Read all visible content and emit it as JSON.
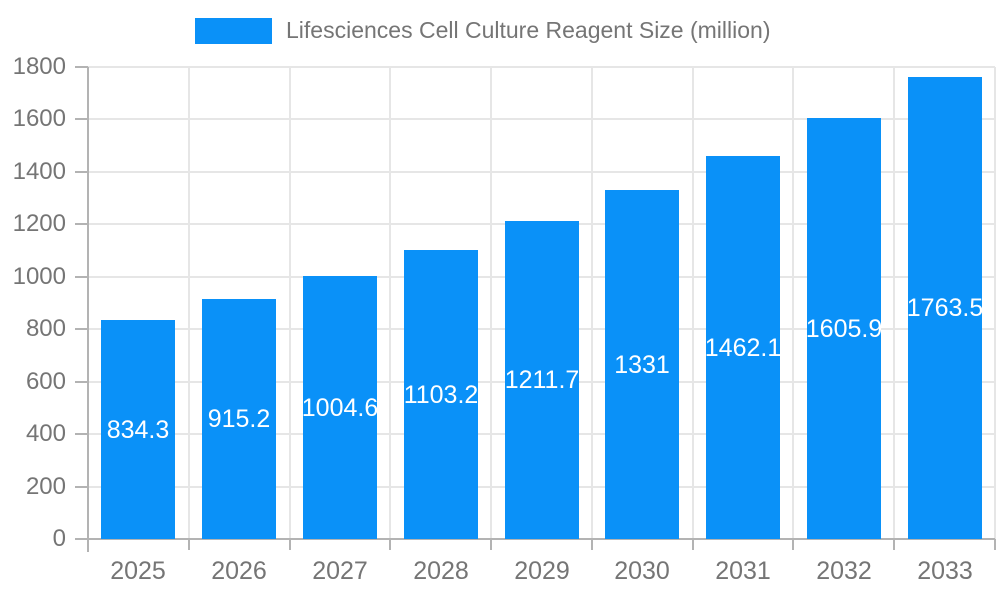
{
  "chart_data": {
    "type": "bar",
    "title": "Lifesciences Cell Culture Reagent Size (million)",
    "categories": [
      "2025",
      "2026",
      "2027",
      "2028",
      "2029",
      "2030",
      "2031",
      "2032",
      "2033"
    ],
    "values": [
      834.3,
      915.2,
      1004.6,
      1103.2,
      1211.7,
      1331,
      1462.1,
      1605.9,
      1763.5
    ],
    "value_labels": [
      "834.3",
      "915.2",
      "1004.6",
      "1103.2",
      "1211.7",
      "1331",
      "1462.1",
      "1605.9",
      "1763.5"
    ],
    "xlabel": "",
    "ylabel": "",
    "ylim": [
      0,
      1800
    ],
    "y_ticks": [
      0,
      200,
      400,
      600,
      800,
      1000,
      1200,
      1400,
      1600,
      1800
    ],
    "grid": true,
    "legend_position": "top",
    "colors": {
      "bar": "#0a91f8",
      "grid": "#e6e6e6",
      "axis": "#b3b3b3",
      "tick_label": "#757575",
      "value_label": "#ffffff",
      "background": "#ffffff"
    }
  }
}
